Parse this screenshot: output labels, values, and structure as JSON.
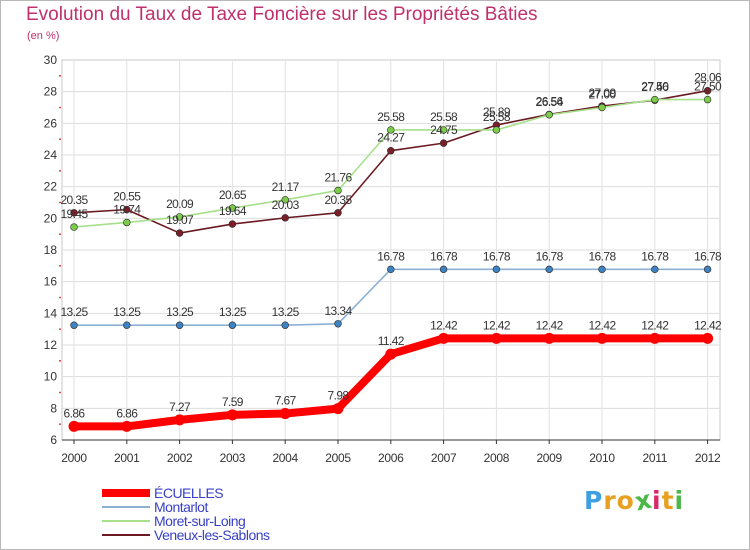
{
  "title": "Evolution du Taux de Taxe Foncière sur les Propriétés Bâties",
  "unit_label": "(en %)",
  "logo": {
    "text": "Proxiti",
    "letters": [
      "P",
      "r",
      "o",
      "x",
      "i",
      "t",
      "i"
    ],
    "colors": [
      "#3da0e0",
      "#e8a020",
      "#e8a020",
      "#4cb848",
      "#d62a6a",
      "#e8a020",
      "#4cb848"
    ]
  },
  "chart_data": {
    "type": "line",
    "title": "Evolution du Taux de Taxe Foncière sur les Propriétés Bâties",
    "ylabel": "(en %)",
    "xlabel": "",
    "ylim": [
      6,
      30
    ],
    "yticks": [
      6,
      8,
      10,
      12,
      14,
      16,
      18,
      20,
      22,
      24,
      26,
      28,
      30
    ],
    "grid": true,
    "x": [
      "2000",
      "2001",
      "2002",
      "2003",
      "2004",
      "2005",
      "2006",
      "2007",
      "2008",
      "2009",
      "2010",
      "2011",
      "2012"
    ],
    "series": [
      {
        "name": "Veneux-les-Sablons",
        "color": "#6b1a22",
        "marker": "#7a1f28",
        "values": [
          20.35,
          20.55,
          19.07,
          19.64,
          20.03,
          20.35,
          24.27,
          24.75,
          25.89,
          26.56,
          27.09,
          27.46,
          28.06
        ],
        "labels": [
          "20.35",
          "20.55",
          "19.07",
          "19.64",
          "20.03",
          "20.35",
          "24.27",
          "24.75",
          "25.89",
          "26.56",
          "27.09",
          "27.46",
          "28.06"
        ]
      },
      {
        "name": "Moret-sur-Loing",
        "color": "#a6e08a",
        "marker": "#7ccc4c",
        "values": [
          19.45,
          19.74,
          20.09,
          20.65,
          21.17,
          21.76,
          25.58,
          25.58,
          25.58,
          26.54,
          27.0,
          27.5,
          27.5
        ],
        "labels": [
          "19.45",
          "19.74",
          "20.09",
          "20.65",
          "21.17",
          "21.76",
          "25.58",
          "25.58",
          "25.58",
          "26.54",
          "27.00",
          "27.50",
          "27.50"
        ]
      },
      {
        "name": "Montarlot",
        "color": "#8ab0d6",
        "marker": "#3f82c2",
        "values": [
          13.25,
          13.25,
          13.25,
          13.25,
          13.25,
          13.34,
          16.78,
          16.78,
          16.78,
          16.78,
          16.78,
          16.78,
          16.78
        ],
        "labels": [
          "13.25",
          "13.25",
          "13.25",
          "13.25",
          "13.25",
          "13.34",
          "16.78",
          "16.78",
          "16.78",
          "16.78",
          "16.78",
          "16.78",
          "16.78"
        ]
      },
      {
        "name": "ÉCUELLES",
        "color": "#ff0000",
        "marker": "#ff0000",
        "values": [
          6.86,
          6.86,
          7.27,
          7.59,
          7.67,
          7.98,
          11.42,
          12.42,
          12.42,
          12.42,
          12.42,
          12.42,
          12.42
        ],
        "labels": [
          "6.86",
          "6.86",
          "7.27",
          "7.59",
          "7.67",
          "7.98",
          "11.42",
          "12.42",
          "12.42",
          "12.42",
          "12.42",
          "12.42",
          "12.42"
        ]
      }
    ],
    "legend": [
      "ÉCUELLES",
      "Montarlot",
      "Moret-sur-Loing",
      "Veneux-les-Sablons"
    ]
  }
}
